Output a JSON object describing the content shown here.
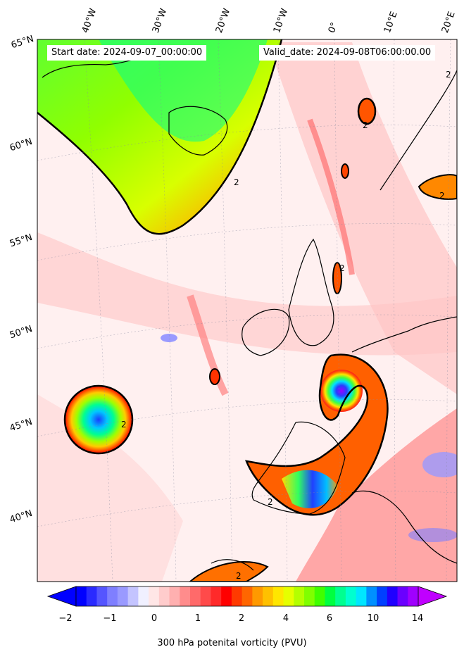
{
  "header": {
    "start_date": "Start date: 2024-09-07_00:00:00",
    "valid_date": "Valid_date: 2024-09-08T06:00:00.00"
  },
  "map": {
    "longitude_labels": [
      "40°W",
      "30°W",
      "20°W",
      "10°W",
      "0°",
      "10°E",
      "20°E"
    ],
    "latitude_labels": [
      "65°N",
      "60°N",
      "55°N",
      "50°N",
      "45°N",
      "40°N"
    ],
    "contour_label": "2"
  },
  "colorbar": {
    "title": "300 hPa potenital vorticity (PVU)",
    "ticks": [
      "−2",
      "−1",
      "0",
      "1",
      "2",
      "4",
      "6",
      "10",
      "14"
    ],
    "colors": [
      "#0000ff",
      "#2a2aff",
      "#5555ff",
      "#7f7fff",
      "#9a9aff",
      "#c4c4ff",
      "#f0f0ff",
      "#ffe6e6",
      "#ffcccc",
      "#ffb0b0",
      "#ff8c8c",
      "#ff6a6a",
      "#ff4a4a",
      "#ff2a2a",
      "#ff0000",
      "#ff3a00",
      "#ff6600",
      "#ff9900",
      "#ffc000",
      "#ffe600",
      "#e6ff00",
      "#b4ff00",
      "#80ff00",
      "#40ff00",
      "#00ff40",
      "#00ff90",
      "#00ffd0",
      "#00e6ff",
      "#0090ff",
      "#0040ff",
      "#2000ff",
      "#6a00ff",
      "#a000ff"
    ]
  }
}
